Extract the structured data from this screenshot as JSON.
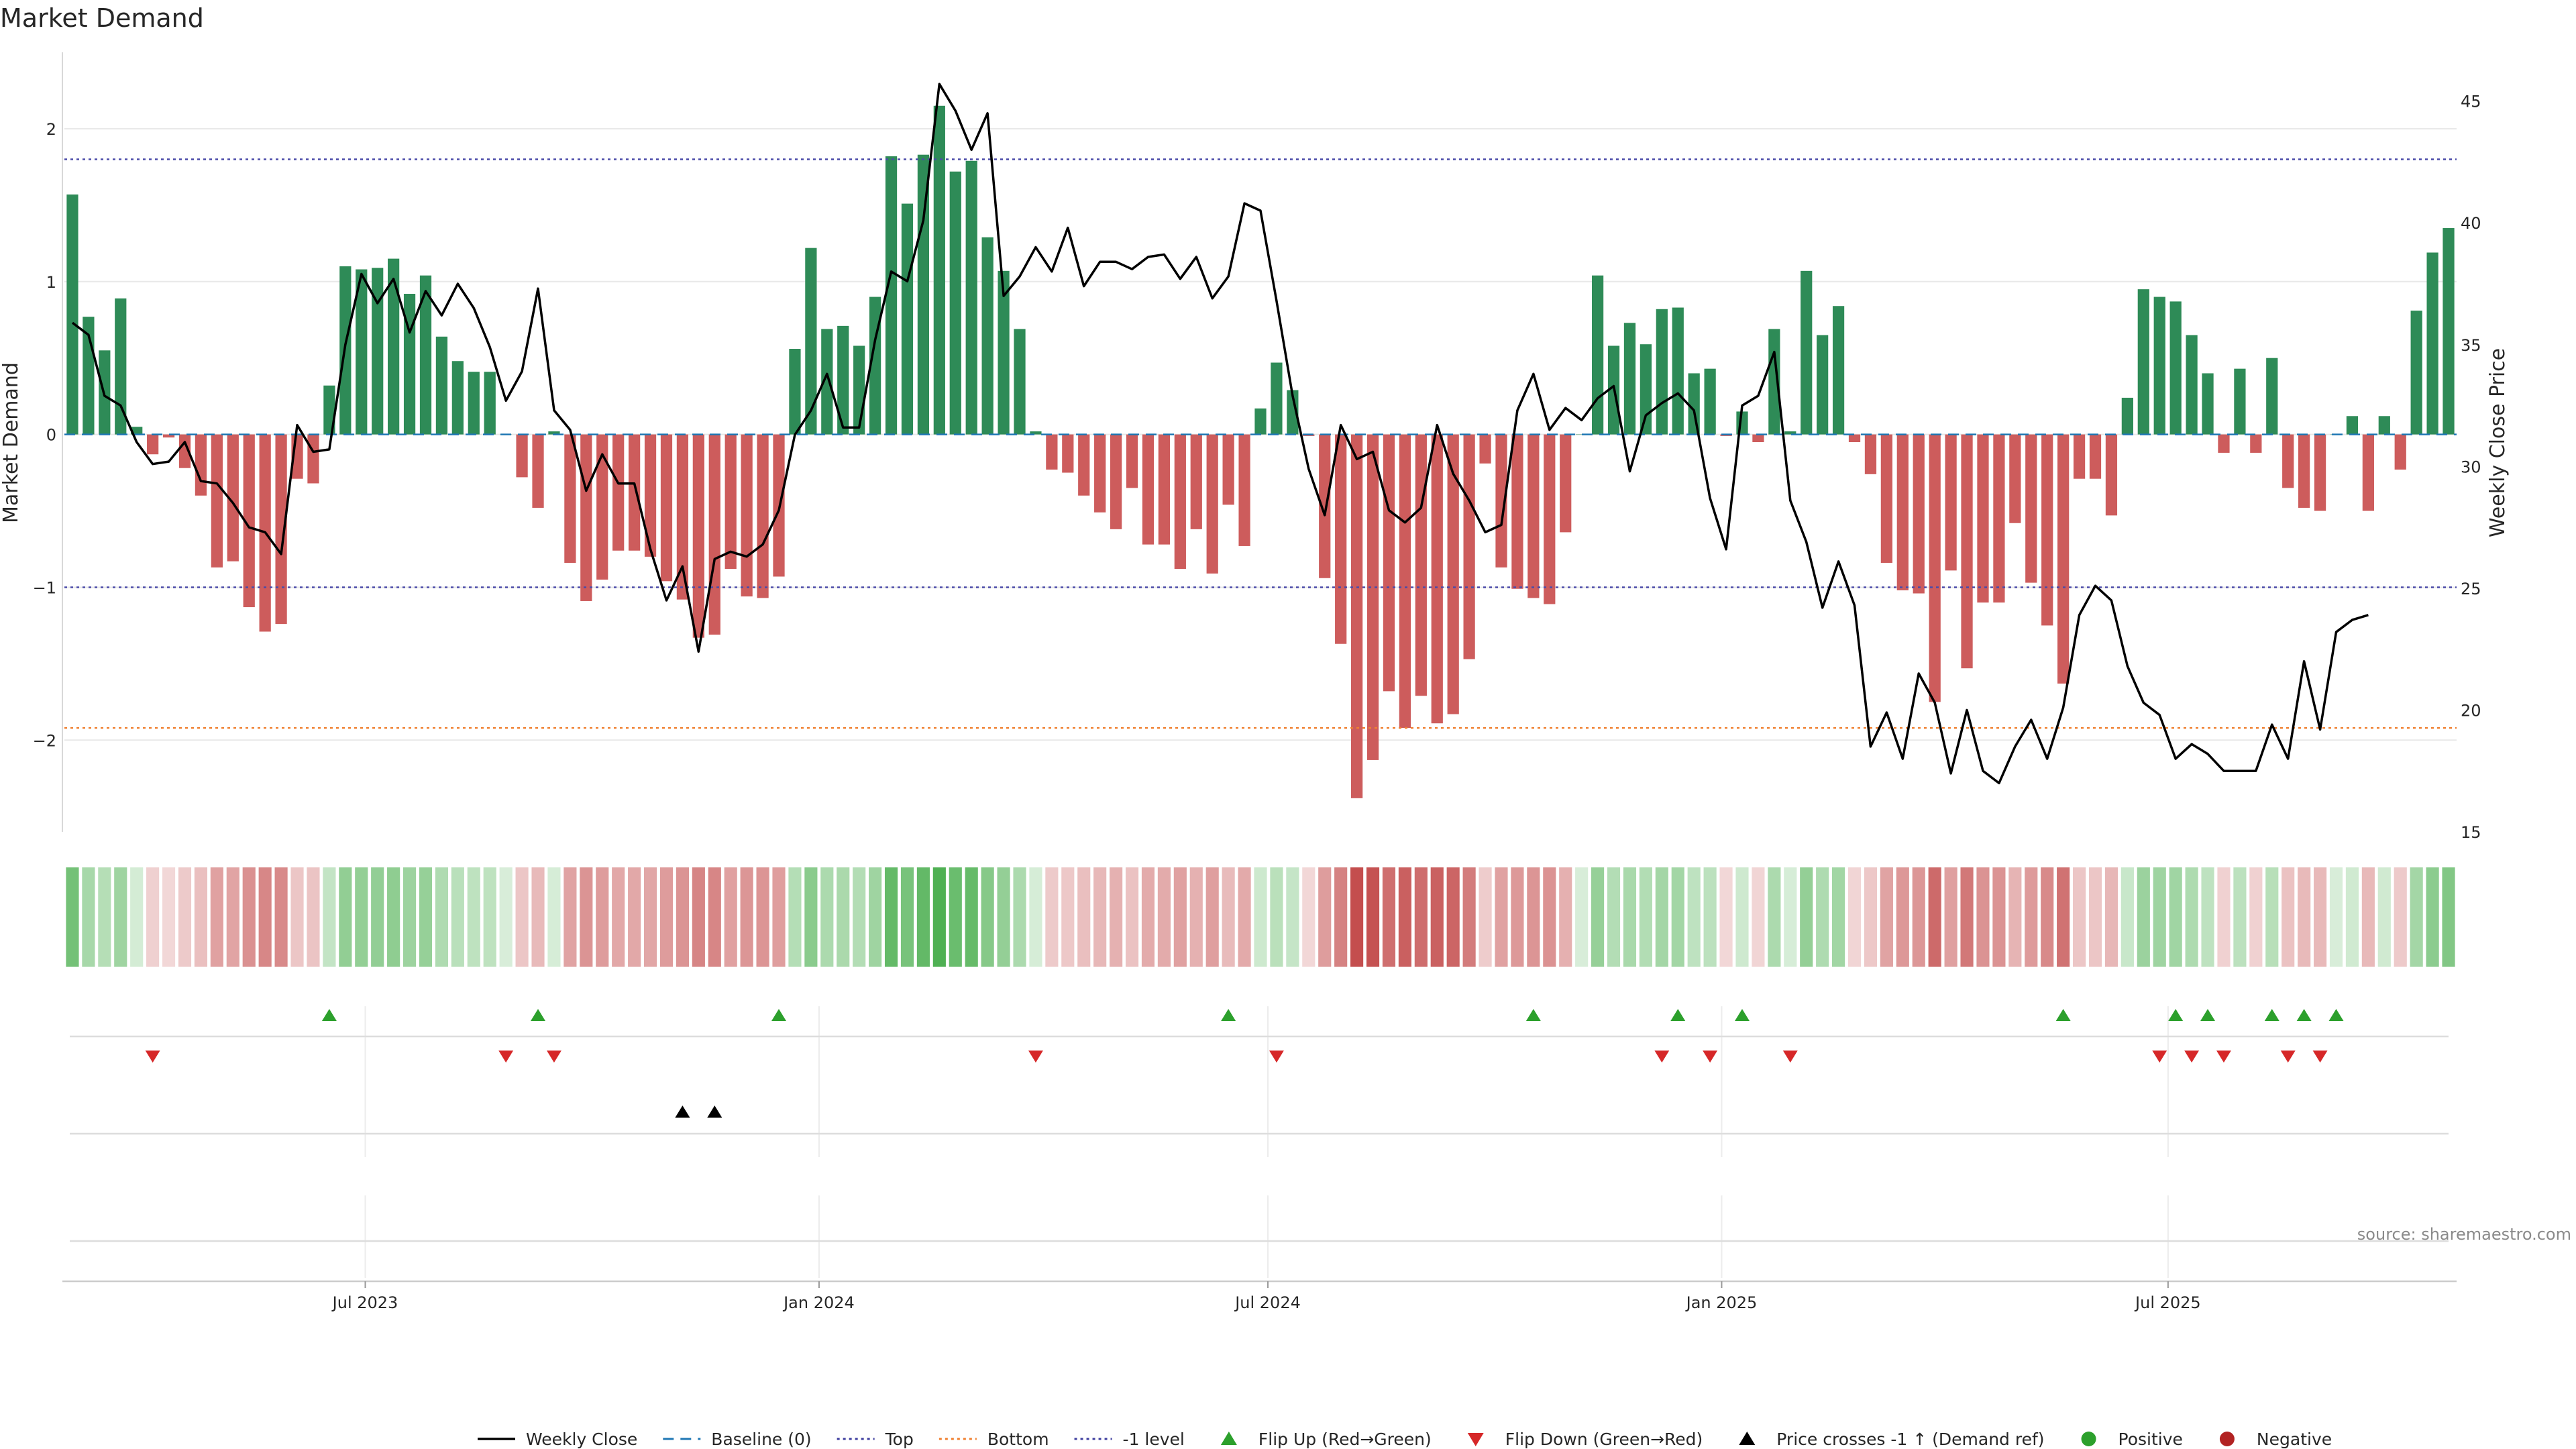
{
  "chart_data": {
    "type": "bar",
    "title": "Market Demand",
    "ylabel": "Market Demand",
    "y2label": "Weekly Close Price",
    "ylim": [
      -2.6,
      2.5
    ],
    "y2lim": [
      15,
      47
    ],
    "yticks": [
      -2,
      -1,
      0,
      1,
      2
    ],
    "yticklabels": [
      "−2",
      "−1",
      "0",
      "1",
      "2"
    ],
    "y2ticks": [
      15,
      20,
      25,
      30,
      35,
      40,
      45
    ],
    "y2ticklabels": [
      "15",
      "20",
      "25",
      "30",
      "35",
      "40",
      "45"
    ],
    "x_start": "2023-03-01",
    "x_end": "2025-10-26",
    "xticks": [
      {
        "date": "2023-07-01",
        "label": "Jul 2023"
      },
      {
        "date": "2024-01-01",
        "label": "Jan 2024"
      },
      {
        "date": "2024-07-01",
        "label": "Jul 2024"
      },
      {
        "date": "2025-01-01",
        "label": "Jan 2025"
      },
      {
        "date": "2025-07-01",
        "label": "Jul 2025"
      }
    ],
    "reference_lines": {
      "top": 1.8,
      "bottom": -1.92,
      "neg1_level": -1.0,
      "baseline": 0
    },
    "demand": [
      1.57,
      0.77,
      0.55,
      0.89,
      0.05,
      -0.13,
      -0.02,
      -0.22,
      -0.4,
      -0.87,
      -0.83,
      -1.13,
      -1.29,
      -1.24,
      -0.29,
      -0.32,
      0.32,
      1.1,
      1.08,
      1.09,
      1.15,
      0.92,
      1.04,
      0.64,
      0.48,
      0.41,
      0.41,
      0.0,
      -0.28,
      -0.48,
      0.02,
      -0.84,
      -1.09,
      -0.95,
      -0.76,
      -0.76,
      -0.8,
      -0.96,
      -1.08,
      -1.33,
      -1.31,
      -0.88,
      -1.06,
      -1.07,
      -0.93,
      0.56,
      1.22,
      0.69,
      0.71,
      0.58,
      0.9,
      1.82,
      1.51,
      1.83,
      2.15,
      1.72,
      1.79,
      1.29,
      1.07,
      0.69,
      0.02,
      -0.23,
      -0.25,
      -0.4,
      -0.51,
      -0.62,
      -0.35,
      -0.72,
      -0.72,
      -0.88,
      -0.62,
      -0.91,
      -0.46,
      -0.73,
      0.17,
      0.47,
      0.29,
      -0.01,
      -0.94,
      -1.37,
      -2.38,
      -2.13,
      -1.68,
      -1.92,
      -1.71,
      -1.89,
      -1.83,
      -1.47,
      -0.19,
      -0.87,
      -1.01,
      -1.07,
      -1.11,
      -0.64,
      0.0,
      1.04,
      0.58,
      0.73,
      0.59,
      0.82,
      0.83,
      0.4,
      0.43,
      -0.01,
      0.15,
      -0.05,
      0.69,
      0.02,
      1.07,
      0.65,
      0.84,
      -0.05,
      -0.26,
      -0.84,
      -1.02,
      -1.04,
      -1.75,
      -0.89,
      -1.53,
      -1.1,
      -1.1,
      -0.58,
      -0.97,
      -1.25,
      -1.63,
      -0.29,
      -0.29,
      -0.53,
      0.24,
      0.95,
      0.9,
      0.87,
      0.65,
      0.4,
      -0.12,
      0.43,
      -0.12,
      0.5,
      -0.35,
      -0.48,
      -0.5,
      0.0,
      0.12,
      -0.5,
      0.12,
      -0.23,
      0.81,
      1.19,
      1.35
    ],
    "price": [
      35.9,
      35.4,
      32.9,
      32.5,
      31.0,
      30.1,
      30.2,
      31.0,
      29.4,
      29.3,
      28.5,
      27.5,
      27.3,
      26.4,
      31.7,
      30.6,
      30.7,
      35.0,
      37.9,
      36.7,
      37.7,
      35.5,
      37.2,
      36.2,
      37.5,
      36.5,
      34.9,
      32.7,
      33.9,
      37.3,
      32.3,
      31.5,
      29.0,
      30.5,
      29.3,
      29.3,
      26.6,
      24.5,
      25.9,
      22.4,
      26.2,
      26.5,
      26.3,
      26.8,
      28.2,
      31.3,
      32.3,
      33.8,
      31.6,
      31.6,
      35.2,
      38.0,
      37.6,
      40.1,
      45.7,
      44.6,
      43.0,
      44.5,
      37.0,
      37.8,
      39.0,
      38.0,
      39.8,
      37.4,
      38.4,
      38.4,
      38.1,
      38.6,
      38.7,
      37.7,
      38.6,
      36.9,
      37.8,
      40.8,
      40.5,
      36.8,
      32.9,
      29.9,
      28.0,
      31.7,
      30.3,
      30.6,
      28.2,
      27.7,
      28.3,
      31.7,
      29.7,
      28.6,
      27.3,
      27.6,
      32.3,
      33.8,
      31.5,
      32.4,
      31.9,
      32.8,
      33.3,
      29.8,
      32.1,
      32.6,
      33.0,
      32.3,
      28.7,
      26.6,
      32.5,
      32.9,
      34.7,
      28.6,
      26.9,
      24.2,
      26.1,
      24.3,
      18.5,
      19.9,
      18.0,
      21.5,
      20.3,
      17.4,
      20.0,
      17.5,
      17.0,
      18.5,
      19.6,
      18.0,
      20.1,
      23.9,
      25.1,
      24.5,
      21.8,
      20.3,
      19.8,
      18.0,
      18.6,
      18.2,
      17.5,
      17.5,
      17.5,
      19.4,
      18.0,
      22.0,
      19.2,
      23.2,
      23.7,
      23.9
    ],
    "signals": {
      "flip_up": [
        16,
        29,
        44,
        72,
        91,
        100,
        104,
        124,
        131,
        133,
        137,
        139,
        141
      ],
      "flip_down": [
        5,
        27,
        30,
        60,
        75,
        99,
        102,
        107,
        130,
        132,
        134,
        138,
        140
      ],
      "price_cross": [
        38,
        40
      ]
    },
    "legend": [
      {
        "label": "Weekly Close",
        "kind": "line",
        "color": "#000000"
      },
      {
        "label": "Baseline (0)",
        "kind": "dash",
        "color": "#1f77b4"
      },
      {
        "label": "Top",
        "kind": "dot",
        "color": "#3f3f9f"
      },
      {
        "label": "Bottom",
        "kind": "dot",
        "color": "#f08030"
      },
      {
        "label": "-1 level",
        "kind": "dot",
        "color": "#3f3f9f"
      },
      {
        "label": "Flip Up (Red→Green)",
        "kind": "tri-up",
        "color": "#2ca02c"
      },
      {
        "label": "Flip Down (Green→Red)",
        "kind": "tri-down",
        "color": "#d62728"
      },
      {
        "label": "Price crosses -1 ↑ (Demand ref)",
        "kind": "tri-up",
        "color": "#000000"
      },
      {
        "label": "Positive",
        "kind": "dot-marker",
        "color": "#2ca02c"
      },
      {
        "label": "Negative",
        "kind": "dot-marker",
        "color": "#b22222"
      }
    ],
    "source": "source: sharemaestro.com"
  },
  "colors": {
    "positive": "#2e8b57",
    "negative": "#cd5c5c",
    "price_line": "#000000",
    "top_line": "#4b4ba8",
    "bottom_line": "#f08030",
    "neg1_line": "#4b4ba8",
    "baseline": "#1f77b4",
    "grid": "#e8e8e8"
  }
}
